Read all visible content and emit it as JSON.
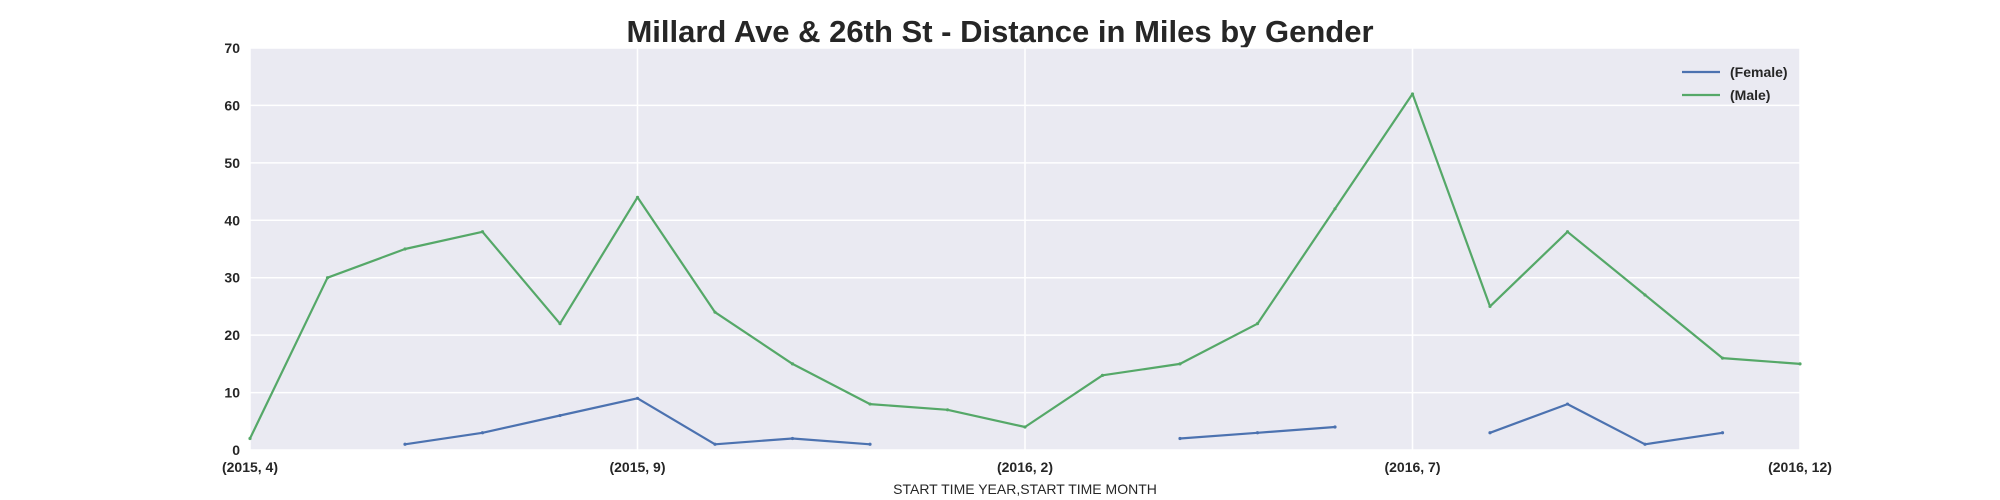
{
  "chart_data": {
    "type": "line",
    "title": "Millard Ave & 26th St - Distance in Miles by Gender",
    "xlabel": "START TIME YEAR,START TIME MONTH",
    "ylabel": "",
    "ylim": [
      0,
      70
    ],
    "yticks": [
      0,
      10,
      20,
      30,
      40,
      50,
      60,
      70
    ],
    "x": [
      "(2015, 4)",
      "(2015, 5)",
      "(2015, 6)",
      "(2015, 7)",
      "(2015, 8)",
      "(2015, 9)",
      "(2015, 10)",
      "(2015, 11)",
      "(2015, 12)",
      "(2016, 1)",
      "(2016, 2)",
      "(2016, 3)",
      "(2016, 4)",
      "(2016, 5)",
      "(2016, 6)",
      "(2016, 7)",
      "(2016, 8)",
      "(2016, 9)",
      "(2016, 10)",
      "(2016, 11)",
      "(2016, 12)"
    ],
    "xtick_labels": [
      "(2015, 4)",
      "(2015, 9)",
      "(2016, 2)",
      "(2016, 7)",
      "(2016, 12)"
    ],
    "grid": true,
    "legend_position": "top-right",
    "series": [
      {
        "name": "(Female)",
        "color": "#4c72b0",
        "values": [
          null,
          null,
          1,
          3,
          6,
          9,
          1,
          2,
          1,
          null,
          null,
          null,
          2,
          3,
          4,
          null,
          3,
          8,
          1,
          3,
          null
        ]
      },
      {
        "name": "(Male)",
        "color": "#55a868",
        "values": [
          2,
          30,
          35,
          38,
          22,
          44,
          24,
          15,
          8,
          7,
          4,
          13,
          15,
          22,
          42,
          62,
          25,
          38,
          27,
          16,
          15
        ]
      }
    ]
  }
}
